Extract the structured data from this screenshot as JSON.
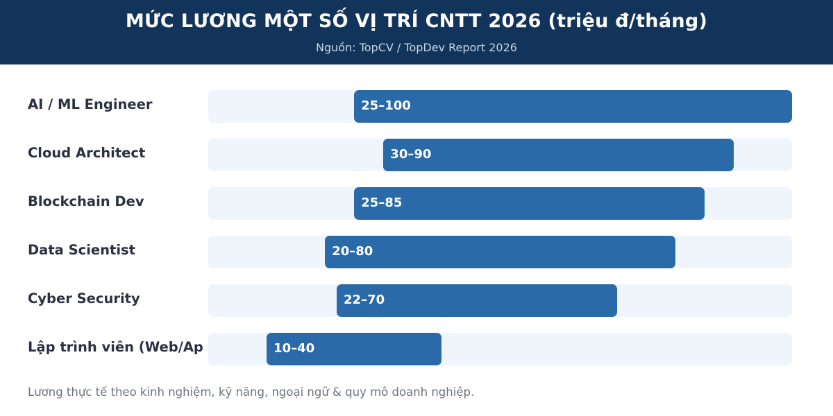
{
  "header": {
    "title": "MỨC LƯƠNG MỘT SỐ VỊ TRÍ CNTT 2026 (triệu đ/tháng)",
    "subtitle": "Nguồn: TopCV / TopDev Report 2026"
  },
  "footnote": "Lương thực tế theo kinh nghiệm, kỹ năng, ngoại ngữ & quy mô doanh nghiệp.",
  "colors": {
    "header_bg": "#12345a",
    "bar": "#2a6aa8",
    "track": "#f0f5fc"
  },
  "chart_data": {
    "type": "bar",
    "orientation": "horizontal",
    "title": "MỨC LƯƠNG MỘT SỐ VỊ TRÍ CNTT 2026 (triệu đ/tháng)",
    "subtitle": "Nguồn: TopCV / TopDev Report 2026",
    "xlim": [
      0,
      100
    ],
    "grid": false,
    "legend": "none",
    "categories": [
      "AI / ML Engineer",
      "Cloud Architect",
      "Blockchain Dev",
      "Data Scientist",
      "Cyber Security",
      "Lập trình viên (Web/Ap"
    ],
    "ranges": [
      {
        "min": 25,
        "max": 100,
        "label": "25–100"
      },
      {
        "min": 30,
        "max": 90,
        "label": "30–90"
      },
      {
        "min": 25,
        "max": 85,
        "label": "25–85"
      },
      {
        "min": 20,
        "max": 80,
        "label": "20–80"
      },
      {
        "min": 22,
        "max": 70,
        "label": "22–70"
      },
      {
        "min": 10,
        "max": 40,
        "label": "10–40"
      }
    ]
  }
}
